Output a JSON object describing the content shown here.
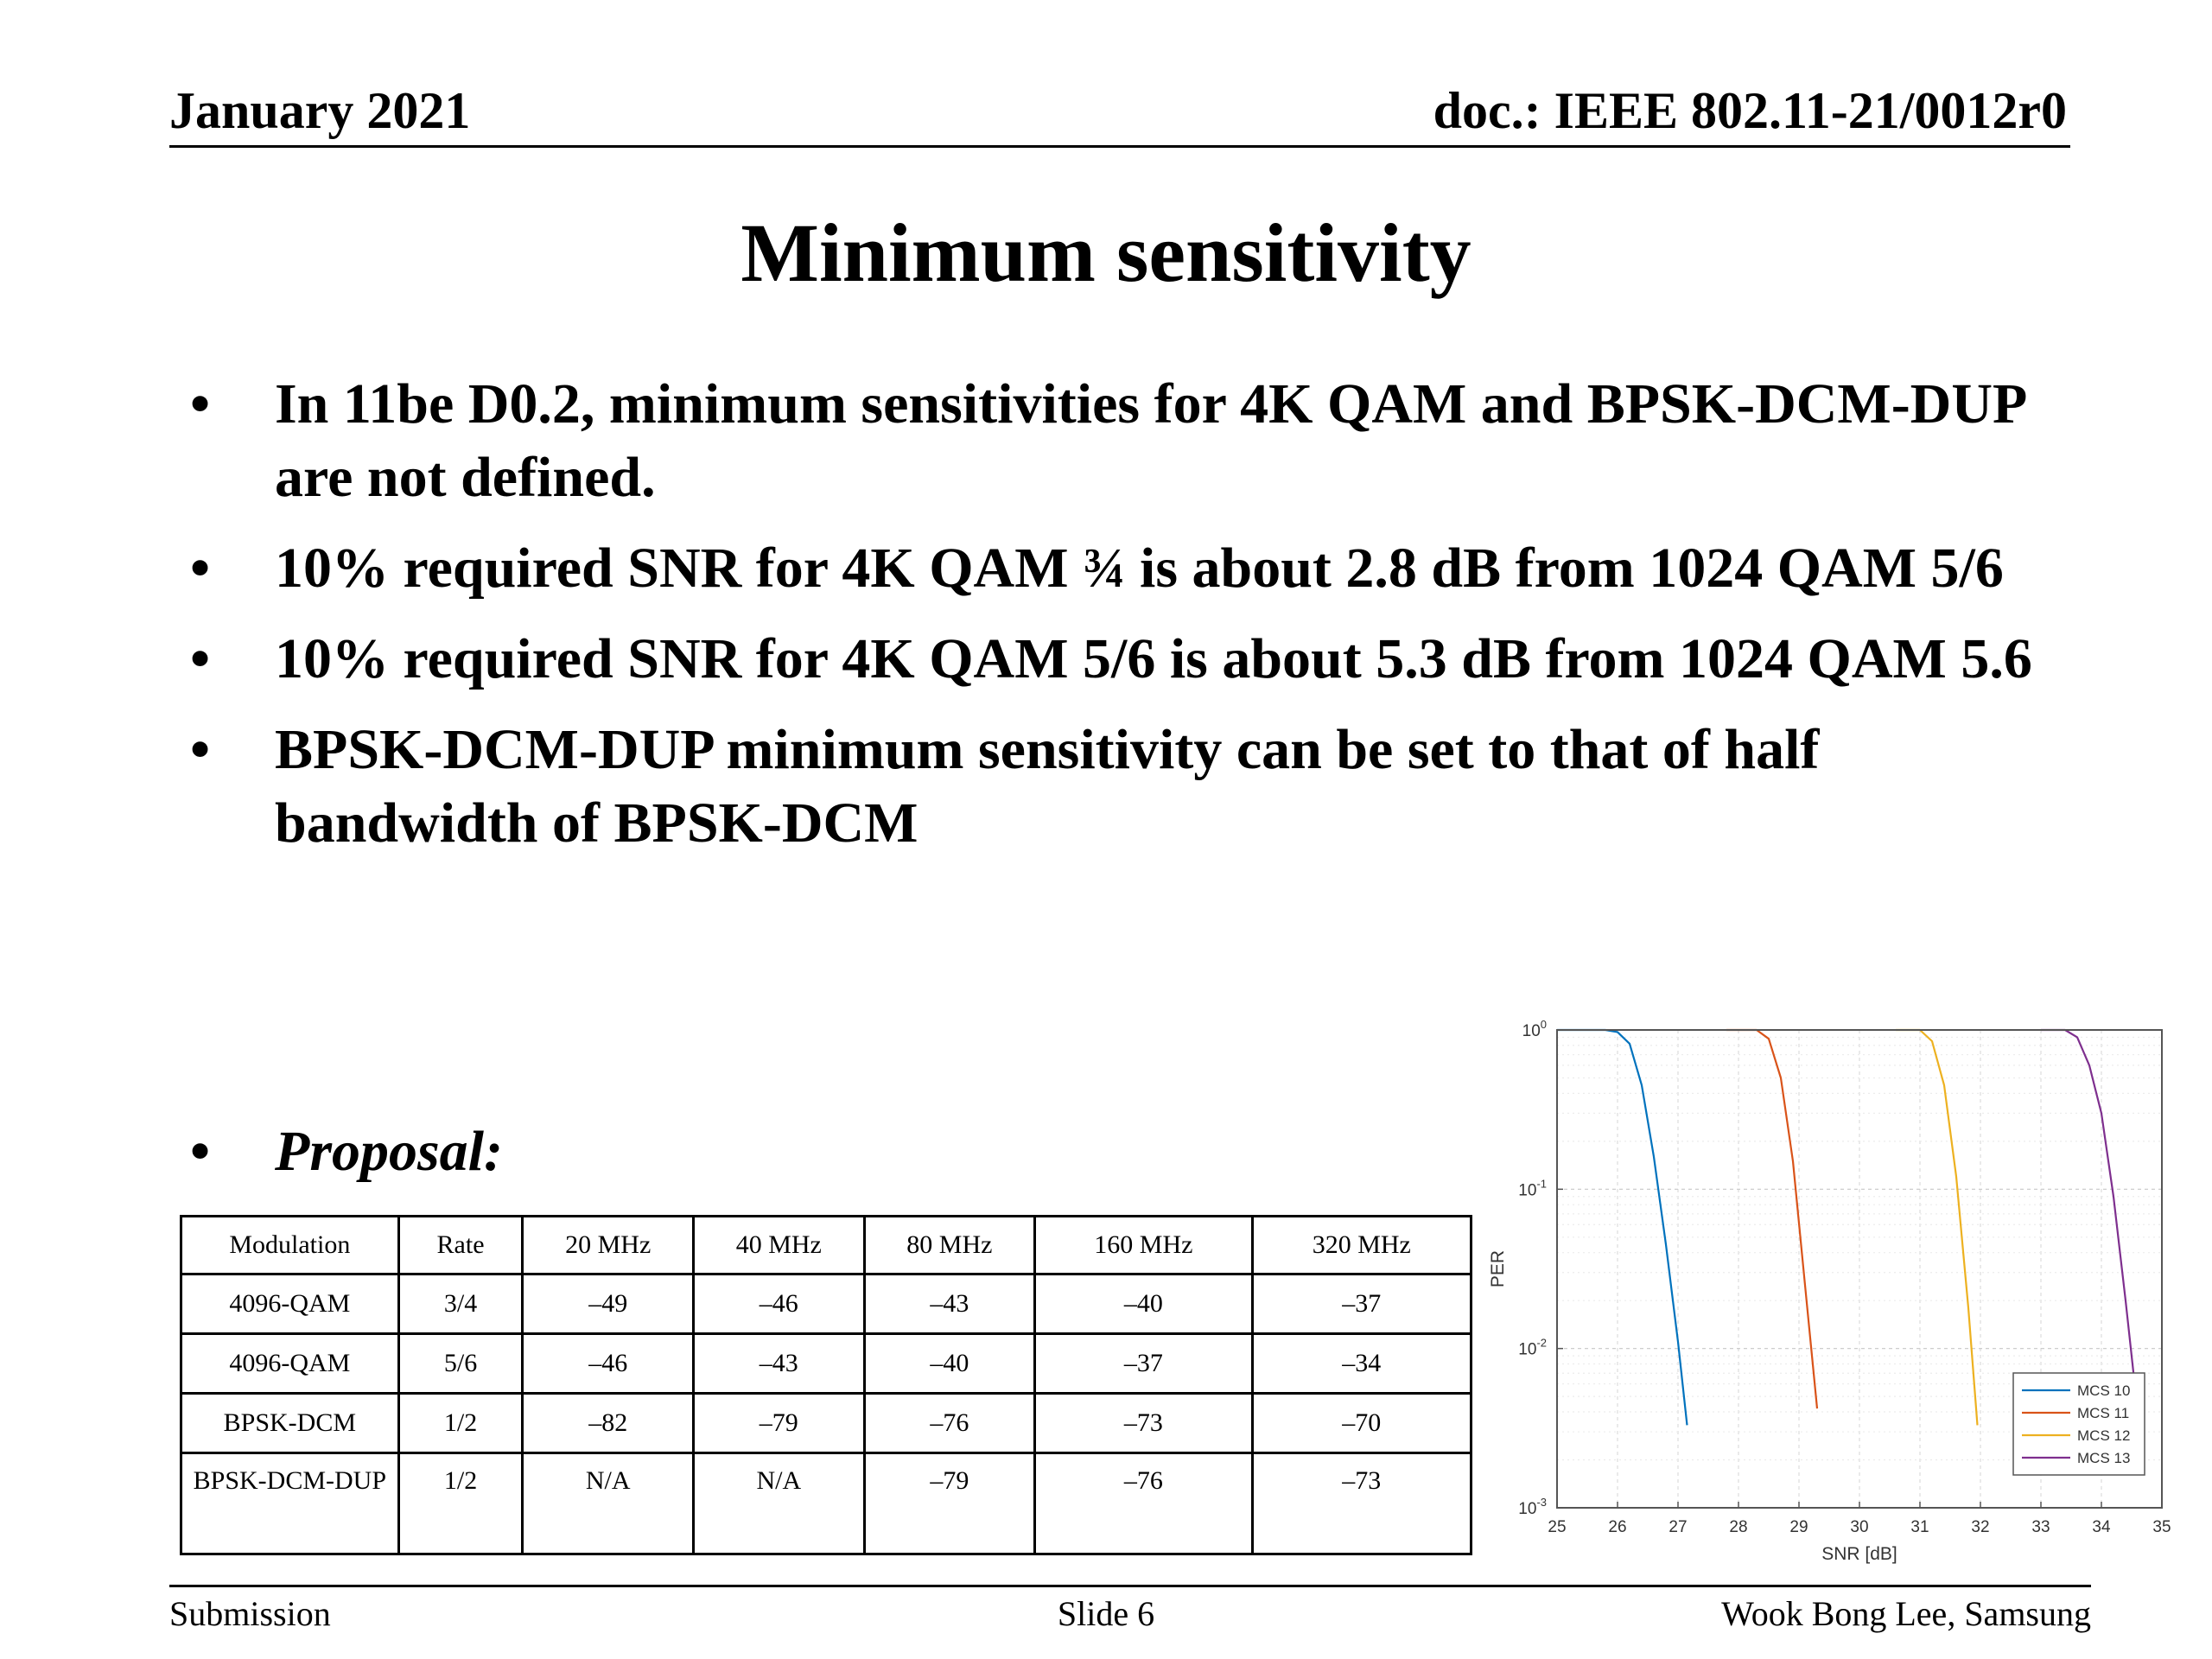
{
  "header": {
    "date": "January 2021",
    "doc": "doc.: IEEE 802.11-21/0012r0"
  },
  "title": "Minimum sensitivity",
  "bullet_glyph": "•",
  "bullets": [
    "In 11be D0.2, minimum sensitivities for 4K QAM and BPSK-DCM-DUP are not defined.",
    "10% required SNR for 4K QAM ¾ is about 2.8 dB from 1024 QAM 5/6",
    "10% required SNR for 4K QAM 5/6 is about 5.3 dB from 1024 QAM 5.6",
    "BPSK-DCM-DUP minimum sensitivity can be set to that of half bandwidth of BPSK-DCM"
  ],
  "proposal": "Proposal:",
  "table": {
    "headers": [
      "Modulation",
      "Rate",
      "20 MHz",
      "40 MHz",
      "80 MHz",
      "160 MHz",
      "320 MHz"
    ],
    "rows": [
      [
        "4096-QAM",
        "3/4",
        "–49",
        "–46",
        "–43",
        "–40",
        "–37"
      ],
      [
        "4096-QAM",
        "5/6",
        "–46",
        "–43",
        "–40",
        "–37",
        "–34"
      ],
      [
        "BPSK-DCM",
        "1/2",
        "–82",
        "–79",
        "–76",
        "–73",
        "–70"
      ],
      [
        "BPSK-DCM-DUP",
        "1/2",
        "N/A",
        "N/A",
        "–79",
        "–76",
        "–73"
      ]
    ]
  },
  "chart_data": {
    "type": "line",
    "xlabel": "SNR [dB]",
    "ylabel": "PER",
    "xlim": [
      25,
      35
    ],
    "ylim": [
      0.001,
      1
    ],
    "y_scale": "log",
    "x_ticks": [
      "25",
      "26",
      "27",
      "28",
      "29",
      "30",
      "31",
      "32",
      "33",
      "34",
      "35"
    ],
    "y_tick_exponents": [
      "0",
      "-1",
      "-2",
      "-3"
    ],
    "grid": true,
    "legend_position": "bottom-right",
    "series": [
      {
        "name": "MCS 10",
        "color": "#0072BD",
        "x": [
          25.0,
          25.8,
          26.0,
          26.2,
          26.4,
          26.6,
          26.8,
          27.0,
          27.15
        ],
        "y": [
          1.0,
          1.0,
          0.97,
          0.82,
          0.45,
          0.16,
          0.045,
          0.011,
          0.0033
        ]
      },
      {
        "name": "MCS 11",
        "color": "#D95319",
        "x": [
          27.8,
          28.3,
          28.5,
          28.7,
          28.9,
          29.1,
          29.3
        ],
        "y": [
          1.0,
          1.0,
          0.88,
          0.5,
          0.15,
          0.025,
          0.0042
        ]
      },
      {
        "name": "MCS 12",
        "color": "#EDB120",
        "x": [
          30.6,
          31.0,
          31.2,
          31.4,
          31.6,
          31.8,
          31.95
        ],
        "y": [
          1.0,
          1.0,
          0.85,
          0.45,
          0.12,
          0.018,
          0.0033
        ]
      },
      {
        "name": "MCS 13",
        "color": "#7E2F8E",
        "x": [
          33.0,
          33.4,
          33.6,
          33.8,
          34.0,
          34.2,
          34.4,
          34.55
        ],
        "y": [
          1.0,
          1.0,
          0.9,
          0.6,
          0.3,
          0.09,
          0.02,
          0.006
        ]
      }
    ]
  },
  "footer": {
    "left": "Submission",
    "center": "Slide 6",
    "right": "Wook Bong Lee, Samsung"
  }
}
